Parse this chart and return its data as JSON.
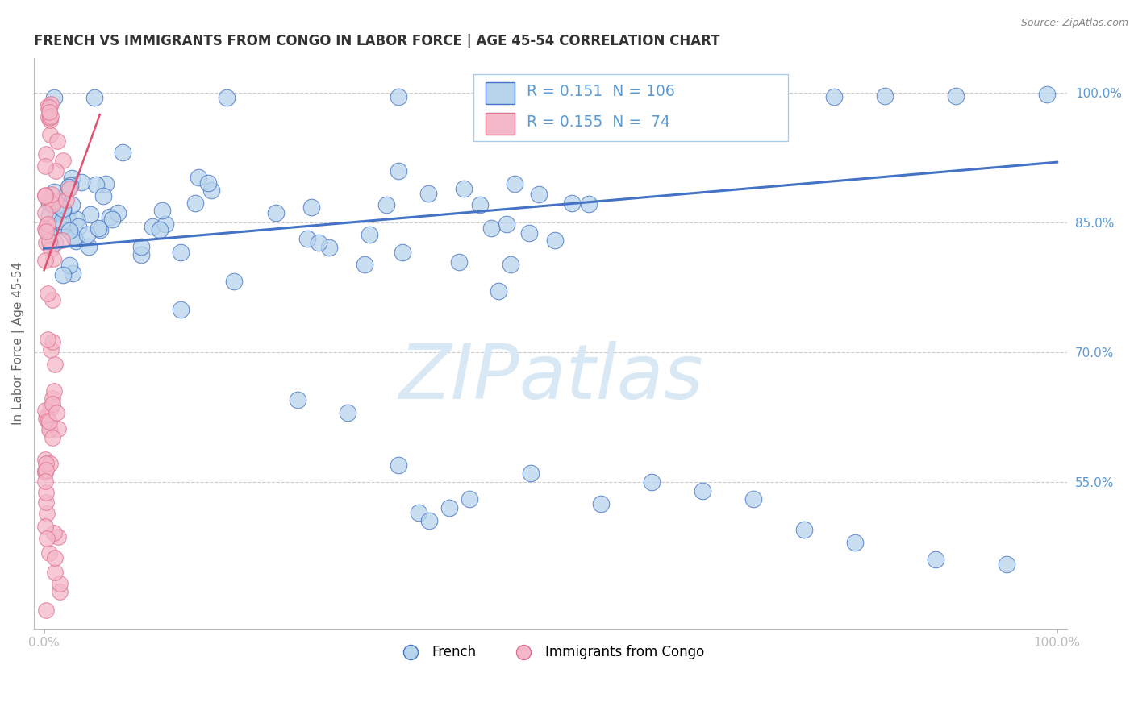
{
  "title": "FRENCH VS IMMIGRANTS FROM CONGO IN LABOR FORCE | AGE 45-54 CORRELATION CHART",
  "source": "Source: ZipAtlas.com",
  "ylabel": "In Labor Force | Age 45-54",
  "xlim": [
    0.0,
    1.0
  ],
  "ylim": [
    0.38,
    1.04
  ],
  "yticks": [
    0.55,
    0.7,
    0.85,
    1.0
  ],
  "ytick_labels": [
    "55.0%",
    "70.0%",
    "85.0%",
    "100.0%"
  ],
  "legend_blue_r": "0.151",
  "legend_blue_n": "106",
  "legend_pink_r": "0.155",
  "legend_pink_n": " 74",
  "blue_fill": "#B8D4EC",
  "blue_edge": "#4472C4",
  "pink_fill": "#F4B8C8",
  "pink_edge": "#E07090",
  "blue_line_color": "#4472C4",
  "pink_line_color": "#E05070",
  "grid_color": "#CCCCCC",
  "watermark_color": "#D8E8F4",
  "tick_color": "#5B9BD5",
  "label_color": "#666666",
  "title_color": "#333333",
  "source_color": "#888888",
  "blue_line_x": [
    0.0,
    1.0
  ],
  "blue_line_y": [
    0.82,
    0.92
  ],
  "pink_line_x": [
    0.0,
    0.055
  ],
  "pink_line_y": [
    0.795,
    0.975
  ]
}
